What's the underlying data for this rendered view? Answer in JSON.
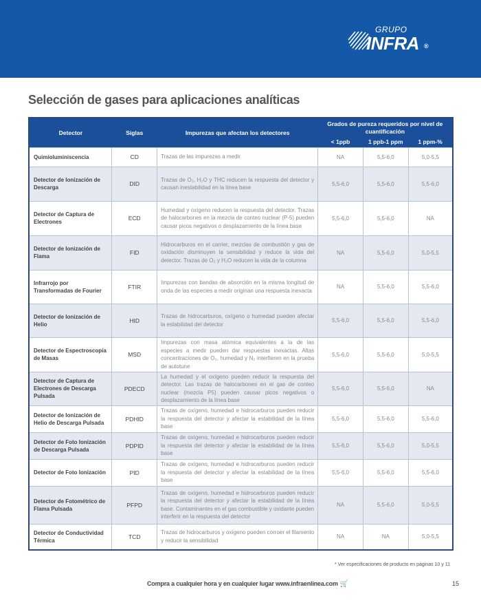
{
  "brand": {
    "group": "GRUPO",
    "name": "INFRA",
    "registered": "®",
    "color": "#1458a8"
  },
  "title": "Selección de gases para aplicaciones analíticas",
  "table": {
    "headers": {
      "detector": "Detector",
      "siglas": "Siglas",
      "impurezas": "Impurezas que afectan los detectores",
      "grados": "Grados de pureza requeridos por nivel de cuantificación",
      "levels": [
        "< 1ppb",
        "1 ppb-1 ppm",
        "1 ppm-%"
      ]
    },
    "rows": [
      {
        "detector": "Quimioluminiscencia",
        "siglas": "CD",
        "impurezas": "Trazas de las impurezas a medir",
        "v": [
          "NA",
          "5,5-6,0",
          "5,0-5,5"
        ]
      },
      {
        "detector": "Detector de Ionización de Descarga",
        "siglas": "DID",
        "impurezas": "Trazas de O₂, H₂O y THC reducen la respuesta del detector y causan inestabilidad en la línea base",
        "v": [
          "5,5-6,0",
          "5,5-6,0",
          "5,5-6,0"
        ]
      },
      {
        "detector": "Detector de Captura de Electrones",
        "siglas": "ECD",
        "impurezas": "Humedad y oxígeno reducen la respuesta del detector. Trazas de halocarbones en la mezcla de conteo nuclear (P-5) pueden causar picos negativos o desplazamiento de la línea base",
        "v": [
          "5,5-6,0",
          "5,5-6,0",
          "NA"
        ]
      },
      {
        "detector": "Detector de Ionización de Flama",
        "siglas": "FID",
        "impurezas": "Hidrocarburos en el carrier, mezclas de combustión y gas de oxidación disminuyen la sensibilidad y reduce la vida del detector. Trazas de O₂ y H₂O reducen la vida de la columna",
        "v": [
          "NA",
          "5,5-6,0",
          "5,0-5,5"
        ]
      },
      {
        "detector": "Infrarrojo por Transformadas de Fourier",
        "siglas": "FTIR",
        "impurezas": "Impurezas con bandas de absorción en la misma longitud de onda de las especies a medir originan una respuesta inexacta",
        "v": [
          "NA",
          "5,5-6,0",
          "5,5-6,0"
        ]
      },
      {
        "detector": "Detector de Ionización de Helio",
        "siglas": "HID",
        "impurezas": "Trazas de hidrocarburos, oxígeno o humedad pueden afectar la estabilidad del detector",
        "v": [
          "5,5-6,0",
          "5,5-6,0",
          "5,5-6,0"
        ]
      },
      {
        "detector": "Detector de Espectroscopía de Masas",
        "siglas": "MSD",
        "impurezas": "Impurezas con masa atómica equivalentes a la de las especies a medir pueden dar respuestas inexactas. Altas concentraciones de O₂, humedad y N₂ interfieren en la prueba de autotune",
        "v": [
          "5,5-6,0",
          "5,5-6,0",
          "5,0-5,5"
        ]
      },
      {
        "detector": "Detector de Captura de Electrones de Descarga Pulsada",
        "siglas": "PDECD",
        "impurezas": "La humedad y el oxígeno pueden reducir la respuesta del detector. Las trazas de halocarbones en el gas de conteo nuclear (mezcla P5) pueden causar picos negativos o desplazamiento de la línea base",
        "v": [
          "5,5-6,0",
          "5,5-6,0",
          "NA"
        ]
      },
      {
        "detector": "Detector de Ionización de Helio de Descarga Pulsada",
        "siglas": "PDHID",
        "impurezas": "Trazas de oxígeno, humedad e hidrocarburos pueden reducir la respuesta del detector y afectar la estabilidad de la línea base",
        "v": [
          "5,5-6,0",
          "5,5-6,0",
          "5,5-6,0"
        ]
      },
      {
        "detector": "Detector de Foto Ionización de Descarga Pulsada",
        "siglas": "PDPID",
        "impurezas": "Trazas de oxígeno, humedad e hidrocarburos pueden reducir la respuesta del detector y afectar la estabilidad de la línea base",
        "v": [
          "5,5-6,0",
          "5,5-6,0",
          "5,0-5,5"
        ]
      },
      {
        "detector": "Detector de Foto Ionización",
        "siglas": "PID",
        "impurezas": "Trazas de oxígeno, humedad e hidrocarburos pueden reducir la respuesta del detector y afectar la estabilidad de la línea base",
        "v": [
          "5,5-6,0",
          "5,5-6,0",
          "5,5-6,0"
        ]
      },
      {
        "detector": "Detector de Fotométrico de Flama Pulsada",
        "siglas": "PFPD",
        "impurezas": "Trazas de oxígeno, humedad e hidrocarburos pueden reducir la respuesta del detector y afectar la estabilidad de la línea base. Contaminantes en el gas combustible y oxidante pueden interferir en la respuesta del detector",
        "v": [
          "NA",
          "5,5-6,0",
          "5,0-5,5"
        ]
      },
      {
        "detector": "Detector de Conductividad Térmica",
        "siglas": "TCD",
        "impurezas": "Trazas de hidrocarburos y oxígeno pueden corroer el filamento y reducir la sensibilidad",
        "v": [
          "NA",
          "NA",
          "5,0-5,5"
        ]
      }
    ]
  },
  "note": "* Ver especificaciones de producto en páginas 10 y 11",
  "footer": {
    "text": "Compra a cualquier hora y en cualquier lugar www.infraenlinea.com",
    "icon": "shopping-cart-icon",
    "page": "15"
  }
}
